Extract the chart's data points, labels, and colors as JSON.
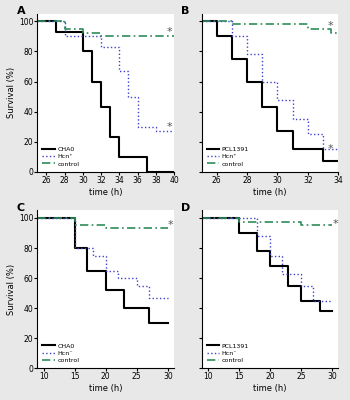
{
  "panels": {
    "A": {
      "label": "A",
      "xlim": [
        25,
        40
      ],
      "xticks": [
        26,
        28,
        30,
        32,
        34,
        36,
        38,
        40
      ],
      "ylim": [
        0,
        105
      ],
      "yticks": [
        0,
        20,
        40,
        60,
        80,
        100
      ],
      "curves": {
        "solid": [
          [
            25,
            100
          ],
          [
            27,
            100
          ],
          [
            27,
            93
          ],
          [
            30,
            93
          ],
          [
            30,
            80
          ],
          [
            31,
            80
          ],
          [
            31,
            60
          ],
          [
            32,
            60
          ],
          [
            32,
            43
          ],
          [
            33,
            43
          ],
          [
            33,
            23
          ],
          [
            34,
            23
          ],
          [
            34,
            10
          ],
          [
            37,
            10
          ],
          [
            37,
            0
          ],
          [
            40,
            0
          ]
        ],
        "dotted": [
          [
            25,
            100
          ],
          [
            28,
            100
          ],
          [
            28,
            90
          ],
          [
            32,
            90
          ],
          [
            32,
            83
          ],
          [
            34,
            83
          ],
          [
            34,
            67
          ],
          [
            35,
            67
          ],
          [
            35,
            50
          ],
          [
            36,
            50
          ],
          [
            36,
            30
          ],
          [
            38,
            30
          ],
          [
            38,
            27
          ],
          [
            40,
            27
          ]
        ],
        "dashdot": [
          [
            25,
            100
          ],
          [
            28,
            100
          ],
          [
            28,
            95
          ],
          [
            30,
            95
          ],
          [
            30,
            92
          ],
          [
            32,
            92
          ],
          [
            32,
            90
          ],
          [
            40,
            90
          ]
        ]
      },
      "star_dotted": [
        39.5,
        30
      ],
      "star_dashdot": [
        39.5,
        93
      ],
      "legend_strain": "CHA0",
      "legend_hcn": "Hcn⁺",
      "legend_control": "control"
    },
    "B": {
      "label": "B",
      "xlim": [
        25,
        34
      ],
      "xticks": [
        26,
        28,
        30,
        32,
        34
      ],
      "ylim": [
        0,
        105
      ],
      "yticks": [
        0,
        20,
        40,
        60,
        80,
        100
      ],
      "curves": {
        "solid": [
          [
            25,
            100
          ],
          [
            26,
            100
          ],
          [
            26,
            90
          ],
          [
            27,
            90
          ],
          [
            27,
            75
          ],
          [
            28,
            75
          ],
          [
            28,
            60
          ],
          [
            29,
            60
          ],
          [
            29,
            43
          ],
          [
            30,
            43
          ],
          [
            30,
            27
          ],
          [
            31,
            27
          ],
          [
            31,
            15
          ],
          [
            33,
            15
          ],
          [
            33,
            7
          ],
          [
            34,
            7
          ]
        ],
        "dotted": [
          [
            25,
            100
          ],
          [
            27,
            100
          ],
          [
            27,
            90
          ],
          [
            28,
            90
          ],
          [
            28,
            78
          ],
          [
            29,
            78
          ],
          [
            29,
            60
          ],
          [
            30,
            60
          ],
          [
            30,
            48
          ],
          [
            31,
            48
          ],
          [
            31,
            35
          ],
          [
            32,
            35
          ],
          [
            32,
            25
          ],
          [
            33,
            25
          ],
          [
            33,
            15
          ],
          [
            34,
            15
          ]
        ],
        "dashdot": [
          [
            25,
            100
          ],
          [
            27,
            100
          ],
          [
            27,
            98
          ],
          [
            32,
            98
          ],
          [
            32,
            95
          ],
          [
            33.5,
            95
          ],
          [
            33.5,
            92
          ],
          [
            34,
            92
          ]
        ]
      },
      "star_dotted": [
        33.5,
        15
      ],
      "star_dashdot": [
        33.5,
        97
      ],
      "legend_strain": "PCL1391",
      "legend_hcn": "Hcn⁺",
      "legend_control": "control"
    },
    "C": {
      "label": "C",
      "xlim": [
        9,
        31
      ],
      "xticks": [
        10,
        15,
        20,
        25,
        30
      ],
      "ylim": [
        0,
        105
      ],
      "yticks": [
        0,
        20,
        40,
        60,
        80,
        100
      ],
      "curves": {
        "solid": [
          [
            9,
            100
          ],
          [
            15,
            100
          ],
          [
            15,
            80
          ],
          [
            17,
            80
          ],
          [
            17,
            65
          ],
          [
            20,
            65
          ],
          [
            20,
            52
          ],
          [
            23,
            52
          ],
          [
            23,
            40
          ],
          [
            27,
            40
          ],
          [
            27,
            30
          ],
          [
            30,
            30
          ]
        ],
        "dotted": [
          [
            9,
            100
          ],
          [
            15,
            100
          ],
          [
            15,
            80
          ],
          [
            18,
            80
          ],
          [
            18,
            75
          ],
          [
            20,
            75
          ],
          [
            20,
            65
          ],
          [
            22,
            65
          ],
          [
            22,
            60
          ],
          [
            25,
            60
          ],
          [
            25,
            55
          ],
          [
            27,
            55
          ],
          [
            27,
            47
          ],
          [
            30,
            47
          ]
        ],
        "dashdot": [
          [
            9,
            100
          ],
          [
            15,
            100
          ],
          [
            15,
            95
          ],
          [
            20,
            95
          ],
          [
            20,
            93
          ],
          [
            30,
            93
          ]
        ]
      },
      "star_dotted": null,
      "star_dashdot": [
        30.5,
        95
      ],
      "legend_strain": "CHA0",
      "legend_hcn": "Hcn⁻",
      "legend_control": "control"
    },
    "D": {
      "label": "D",
      "xlim": [
        9,
        31
      ],
      "xticks": [
        10,
        15,
        20,
        25,
        30
      ],
      "ylim": [
        0,
        105
      ],
      "yticks": [
        0,
        20,
        40,
        60,
        80,
        100
      ],
      "curves": {
        "solid": [
          [
            9,
            100
          ],
          [
            15,
            100
          ],
          [
            15,
            90
          ],
          [
            18,
            90
          ],
          [
            18,
            78
          ],
          [
            20,
            78
          ],
          [
            20,
            68
          ],
          [
            23,
            68
          ],
          [
            23,
            55
          ],
          [
            25,
            55
          ],
          [
            25,
            45
          ],
          [
            28,
            45
          ],
          [
            28,
            38
          ],
          [
            30,
            38
          ]
        ],
        "dotted": [
          [
            9,
            100
          ],
          [
            18,
            100
          ],
          [
            18,
            88
          ],
          [
            20,
            88
          ],
          [
            20,
            75
          ],
          [
            22,
            75
          ],
          [
            22,
            63
          ],
          [
            25,
            63
          ],
          [
            25,
            55
          ],
          [
            27,
            55
          ],
          [
            27,
            45
          ],
          [
            30,
            45
          ]
        ],
        "dashdot": [
          [
            9,
            100
          ],
          [
            15,
            100
          ],
          [
            15,
            97
          ],
          [
            25,
            97
          ],
          [
            25,
            95
          ],
          [
            30,
            95
          ]
        ]
      },
      "star_dotted": null,
      "star_dashdot": [
        30.5,
        96
      ],
      "legend_strain": "PCL1391",
      "legend_hcn": "Hcn⁻",
      "legend_control": "control"
    }
  },
  "colors": {
    "solid": "#000000",
    "dotted": "#4040cc",
    "dashdot": "#2d8c5a"
  },
  "bg_color": "#e8e8e8",
  "panel_bg": "#ffffff"
}
